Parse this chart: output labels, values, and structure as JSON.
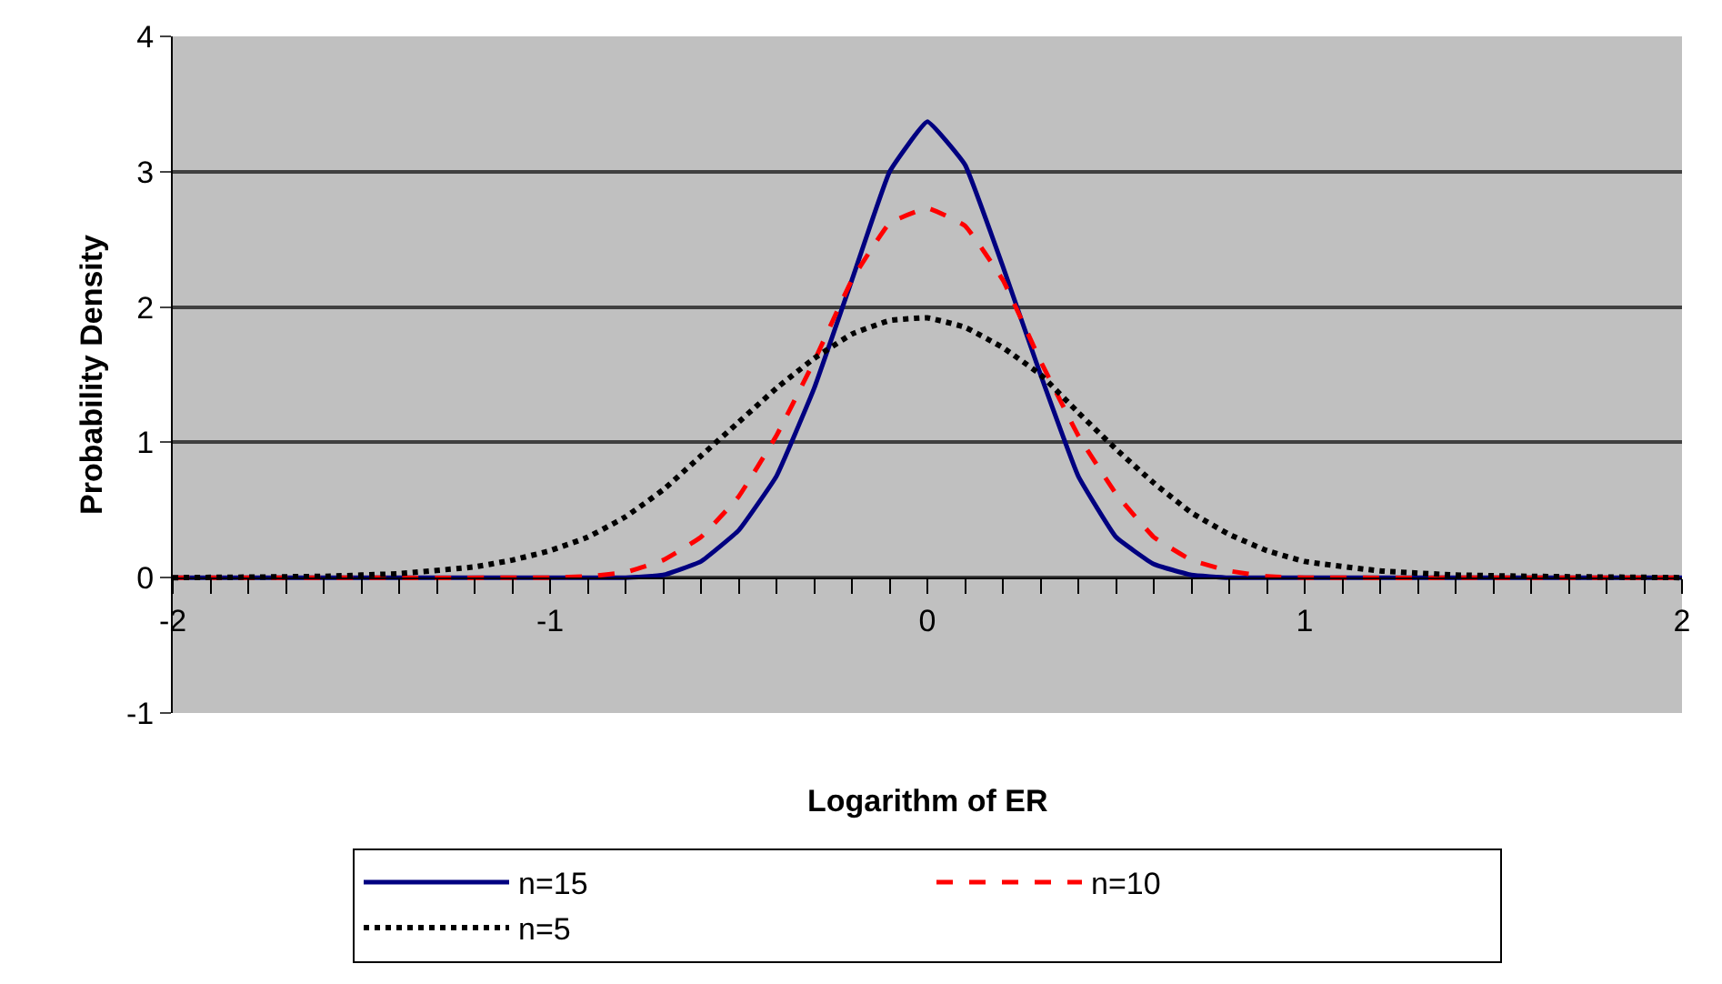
{
  "chart_data": {
    "type": "line",
    "xlabel": "Logarithm of ER",
    "ylabel": "Probability Density",
    "xlim": [
      -2,
      2
    ],
    "ylim": [
      -1,
      4
    ],
    "xticks": [
      -2,
      {
        "value": -1.9,
        "label": null
      },
      {
        "value": -1.8,
        "label": null
      },
      {
        "value": -1.7,
        "label": null
      },
      {
        "value": -1.6,
        "label": null
      },
      {
        "value": -1.5,
        "label": null
      },
      {
        "value": -1.4,
        "label": null
      },
      {
        "value": -1.3,
        "label": null
      },
      {
        "value": -1.2,
        "label": null
      },
      {
        "value": -1.1,
        "label": null
      },
      -1,
      {
        "value": -0.9,
        "label": null
      },
      {
        "value": -0.8,
        "label": null
      },
      {
        "value": -0.7,
        "label": null
      },
      {
        "value": -0.6,
        "label": null
      },
      {
        "value": -0.5,
        "label": null
      },
      {
        "value": -0.4,
        "label": null
      },
      {
        "value": -0.3,
        "label": null
      },
      {
        "value": -0.2,
        "label": null
      },
      {
        "value": -0.1,
        "label": null
      },
      0,
      {
        "value": 0.1,
        "label": null
      },
      {
        "value": 0.2,
        "label": null
      },
      {
        "value": 0.3,
        "label": null
      },
      {
        "value": 0.4,
        "label": null
      },
      {
        "value": 0.5,
        "label": null
      },
      {
        "value": 0.6,
        "label": null
      },
      {
        "value": 0.7,
        "label": null
      },
      {
        "value": 0.8,
        "label": null
      },
      {
        "value": 0.9,
        "label": null
      },
      1,
      {
        "value": 1.1,
        "label": null
      },
      {
        "value": 1.2,
        "label": null
      },
      {
        "value": 1.3,
        "label": null
      },
      {
        "value": 1.4,
        "label": null
      },
      {
        "value": 1.5,
        "label": null
      },
      {
        "value": 1.6,
        "label": null
      },
      {
        "value": 1.7,
        "label": null
      },
      {
        "value": 1.8,
        "label": null
      },
      {
        "value": 1.9,
        "label": null
      },
      2
    ],
    "yticks": [
      -1,
      0,
      1,
      2,
      3,
      4
    ],
    "grid": "y",
    "legend": "bottom",
    "marker": "none",
    "series": [
      {
        "name": "n=15",
        "color": "#000080",
        "line_style": "solid",
        "x": [
          -2,
          -0.8,
          -0.7,
          -0.6,
          -0.5,
          -0.4,
          -0.3,
          -0.2,
          -0.1,
          0,
          0.1,
          0.2,
          0.3,
          0.4,
          0.5,
          0.6,
          0.7,
          0.8,
          2
        ],
        "values": [
          0,
          0,
          0.02,
          0.12,
          0.35,
          0.75,
          1.4,
          2.2,
          3.0,
          3.37,
          3.05,
          2.3,
          1.5,
          0.75,
          0.3,
          0.1,
          0.02,
          0,
          0
        ]
      },
      {
        "name": "n=10",
        "color": "#ff0000",
        "line_style": "dashed",
        "x": [
          -2,
          -1,
          -0.9,
          -0.8,
          -0.7,
          -0.6,
          -0.5,
          -0.4,
          -0.3,
          -0.2,
          -0.1,
          0,
          0.1,
          0.2,
          0.3,
          0.4,
          0.5,
          0.6,
          0.7,
          0.8,
          0.9,
          1.0,
          2
        ],
        "values": [
          0,
          0,
          0.01,
          0.04,
          0.13,
          0.3,
          0.6,
          1.05,
          1.6,
          2.2,
          2.62,
          2.73,
          2.6,
          2.2,
          1.6,
          1.05,
          0.62,
          0.3,
          0.13,
          0.05,
          0.01,
          0,
          0
        ]
      },
      {
        "name": "n=5",
        "color": "#000000",
        "line_style": "dotted",
        "x": [
          -2,
          -1.6,
          -1.4,
          -1.2,
          -1.1,
          -1.0,
          -0.9,
          -0.8,
          -0.7,
          -0.6,
          -0.5,
          -0.4,
          -0.3,
          -0.2,
          -0.1,
          0,
          0.1,
          0.2,
          0.3,
          0.4,
          0.5,
          0.6,
          0.7,
          0.8,
          0.9,
          1.0,
          1.2,
          1.4,
          1.6,
          2
        ],
        "values": [
          0,
          0.01,
          0.03,
          0.08,
          0.13,
          0.2,
          0.3,
          0.45,
          0.65,
          0.9,
          1.15,
          1.4,
          1.62,
          1.8,
          1.9,
          1.92,
          1.85,
          1.7,
          1.5,
          1.22,
          0.95,
          0.7,
          0.48,
          0.32,
          0.2,
          0.12,
          0.05,
          0.02,
          0.01,
          0
        ]
      }
    ]
  }
}
